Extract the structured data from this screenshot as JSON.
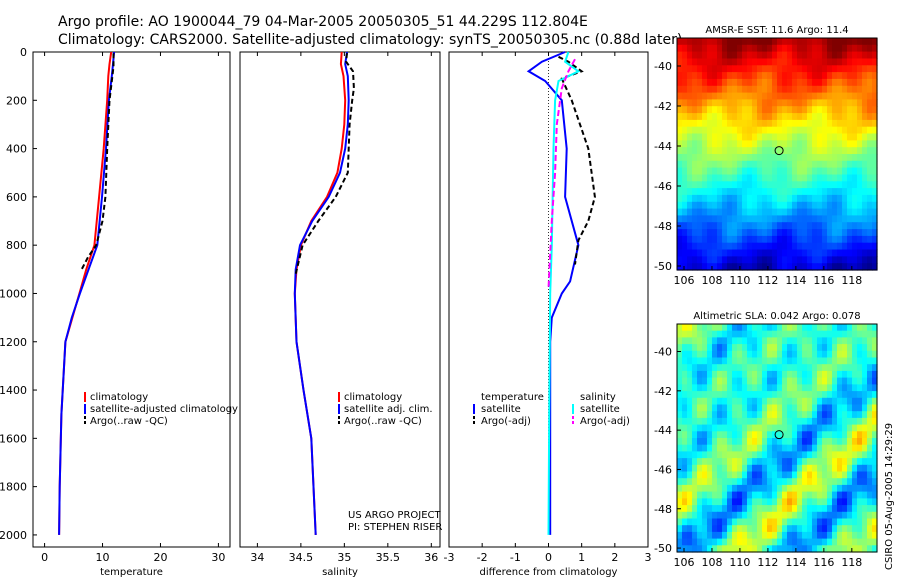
{
  "header": {
    "line1": "Argo profile: AO 1900044_79 04-Mar-2005 20050305_51 44.229S 112.804E",
    "line2": "Climatology: CARS2000. Satellite-adjusted climatology: synTS_20050305.nc (0.88d later)"
  },
  "side_label": "CSIRO 05-Aug-2005 14:29:29",
  "chart_data": [
    {
      "id": "temperature",
      "type": "line",
      "xlabel": "temperature",
      "ylabel": "",
      "xlim": [
        -2,
        32
      ],
      "ylim": [
        2050,
        0
      ],
      "xticks": [
        "0",
        "10",
        "20",
        "30"
      ],
      "xtick_values": [
        0,
        10,
        20,
        30
      ],
      "yticks": [
        "0",
        "200",
        "400",
        "600",
        "800",
        "1000",
        "1200",
        "1400",
        "1600",
        "1800",
        "2000"
      ],
      "ytick_values": [
        0,
        200,
        400,
        600,
        800,
        1000,
        1200,
        1400,
        1600,
        1800,
        2000
      ],
      "legend": [
        "climatology",
        "satellite-adjusted climatology",
        "Argo(..raw -QC)"
      ],
      "series": [
        {
          "name": "climatology",
          "color": "#ff0000",
          "dash": "",
          "x": [
            11.5,
            11.2,
            11.0,
            10.8,
            10.2,
            9.4,
            8.6,
            7.2,
            6.0,
            4.8,
            3.6,
            2.9,
            2.6,
            2.5
          ],
          "y": [
            0,
            50,
            100,
            200,
            400,
            600,
            800,
            900,
            1000,
            1100,
            1200,
            1500,
            1800,
            2000
          ]
        },
        {
          "name": "satellite-adjusted climatology",
          "color": "#0000ff",
          "dash": "",
          "x": [
            12.0,
            11.8,
            11.6,
            11.1,
            10.6,
            9.9,
            9.1,
            7.6,
            6.1,
            4.7,
            3.6,
            2.9,
            2.6,
            2.5
          ],
          "y": [
            0,
            50,
            100,
            200,
            400,
            600,
            800,
            900,
            1000,
            1100,
            1200,
            1500,
            1800,
            2000
          ]
        },
        {
          "name": "Argo(..raw -QC)",
          "color": "#000000",
          "dash": "5,3",
          "x": [
            11.9,
            11.9,
            11.7,
            11.2,
            10.8,
            10.5,
            10.0,
            8.9,
            7.5,
            6.4
          ],
          "y": [
            5,
            60,
            100,
            200,
            400,
            600,
            700,
            800,
            850,
            900
          ]
        }
      ]
    },
    {
      "id": "salinity",
      "type": "line",
      "xlabel": "salinity",
      "ylabel": "",
      "xlim": [
        33.8,
        36.1
      ],
      "ylim": [
        2050,
        0
      ],
      "xticks": [
        "34",
        "34.5",
        "35",
        "35.5",
        "36"
      ],
      "xtick_values": [
        34,
        34.5,
        35,
        35.5,
        36
      ],
      "yticks": [],
      "ytick_values": [],
      "legend": [
        "climatology",
        "satellite adj. clim.",
        "Argo(..raw -QC)"
      ],
      "series": [
        {
          "name": "climatology",
          "color": "#ff0000",
          "dash": "",
          "x": [
            34.97,
            34.96,
            34.99,
            35.01,
            35.0,
            34.97,
            34.92,
            34.8,
            34.62,
            34.5,
            34.45,
            34.43,
            34.45,
            34.53,
            34.62,
            34.67
          ],
          "y": [
            0,
            50,
            100,
            200,
            300,
            400,
            500,
            600,
            700,
            800,
            900,
            1000,
            1200,
            1400,
            1600,
            2000
          ]
        },
        {
          "name": "satellite adj. clim.",
          "color": "#0000ff",
          "dash": "",
          "x": [
            35.03,
            35.01,
            35.04,
            35.05,
            35.04,
            35.01,
            34.95,
            34.82,
            34.63,
            34.49,
            34.44,
            34.43,
            34.45,
            34.53,
            34.62,
            34.67
          ],
          "y": [
            0,
            50,
            100,
            200,
            300,
            400,
            500,
            600,
            700,
            800,
            900,
            1000,
            1200,
            1400,
            1600,
            2000
          ]
        },
        {
          "name": "Argo(..raw -QC)",
          "color": "#000000",
          "dash": "5,3",
          "x": [
            35.03,
            35.02,
            35.1,
            35.11,
            35.09,
            35.06,
            35.05,
            35.04,
            34.9,
            34.7,
            34.52,
            34.44
          ],
          "y": [
            5,
            40,
            80,
            150,
            200,
            300,
            400,
            500,
            600,
            700,
            800,
            920
          ]
        }
      ]
    },
    {
      "id": "difference",
      "type": "line",
      "xlabel": "difference from climatology",
      "ylabel": "",
      "xlim": [
        -3,
        3
      ],
      "ylim": [
        2050,
        0
      ],
      "xticks": [
        "-3",
        "-2",
        "-1",
        "0",
        "1",
        "2",
        "3"
      ],
      "xtick_values": [
        -3,
        -2,
        -1,
        0,
        1,
        2,
        3
      ],
      "yticks": [],
      "ytick_values": [],
      "legend_left_title": "temperature",
      "legend_left": [
        "satellite",
        "Argo(-adj)"
      ],
      "legend_right_title": "salinity",
      "legend_right": [
        "satellite",
        "Argo(-adj)"
      ],
      "series": [
        {
          "name": "temperature satellite",
          "color": "#0000ff",
          "dash": "",
          "x": [
            0.5,
            -0.2,
            -0.6,
            -0.1,
            0.4,
            0.55,
            0.5,
            0.9,
            0.65,
            0.4,
            0.1,
            0.05,
            0.05,
            0.05
          ],
          "y": [
            0,
            40,
            80,
            120,
            200,
            400,
            600,
            800,
            950,
            1000,
            1100,
            1200,
            1500,
            2000
          ]
        },
        {
          "name": "temperature Argo(-adj)",
          "color": "#000000",
          "dash": "5,3",
          "x": [
            0.3,
            0.6,
            1.0,
            0.4,
            0.7,
            1.2,
            1.4,
            1.2,
            0.9,
            0.8
          ],
          "y": [
            20,
            40,
            80,
            110,
            200,
            400,
            600,
            700,
            780,
            880
          ]
        },
        {
          "name": "salinity satellite",
          "color": "#00ffff",
          "dash": "",
          "x": [
            0.6,
            0.5,
            0.9,
            0.3,
            0.2,
            0.15,
            0.1,
            0.05,
            0.02,
            0.0
          ],
          "y": [
            0,
            40,
            80,
            120,
            200,
            400,
            800,
            1000,
            1500,
            2000
          ]
        },
        {
          "name": "salinity Argo(-adj)",
          "color": "#ff00ff",
          "dash": "6,3",
          "x": [
            0.8,
            0.6,
            0.4,
            0.25,
            0.2,
            0.1,
            0.0
          ],
          "y": [
            30,
            80,
            150,
            300,
            500,
            700,
            980
          ]
        }
      ]
    },
    {
      "id": "sst_map",
      "type": "heatmap",
      "title": "AMSR-E SST: 11.6 Argo: 11.4",
      "xlim": [
        105.5,
        119.8
      ],
      "ylim": [
        -50.2,
        -38.6
      ],
      "xticks": [
        "106",
        "108",
        "110",
        "112",
        "114",
        "116",
        "118"
      ],
      "xtick_values": [
        106,
        108,
        110,
        112,
        114,
        116,
        118
      ],
      "yticks": [
        "-40",
        "-42",
        "-44",
        "-46",
        "-48",
        "-50"
      ],
      "ytick_values": [
        -40,
        -42,
        -44,
        -46,
        -48,
        -50
      ],
      "marker": {
        "lon": 112.8,
        "lat": -44.23
      }
    },
    {
      "id": "sla_map",
      "type": "heatmap",
      "title": "Altimetric SLA: 0.042 Argo: 0.078",
      "xlim": [
        105.5,
        119.8
      ],
      "ylim": [
        -50.2,
        -38.6
      ],
      "xticks": [
        "106",
        "108",
        "110",
        "112",
        "114",
        "116",
        "118"
      ],
      "xtick_values": [
        106,
        108,
        110,
        112,
        114,
        116,
        118
      ],
      "yticks": [
        "-40",
        "-42",
        "-44",
        "-46",
        "-48",
        "-50"
      ],
      "ytick_values": [
        -40,
        -42,
        -44,
        -46,
        -48,
        -50
      ],
      "marker": {
        "lon": 112.8,
        "lat": -44.23
      }
    }
  ],
  "credits": {
    "line1": "US ARGO PROJECT",
    "line2": "PI: STEPHEN RISER"
  }
}
